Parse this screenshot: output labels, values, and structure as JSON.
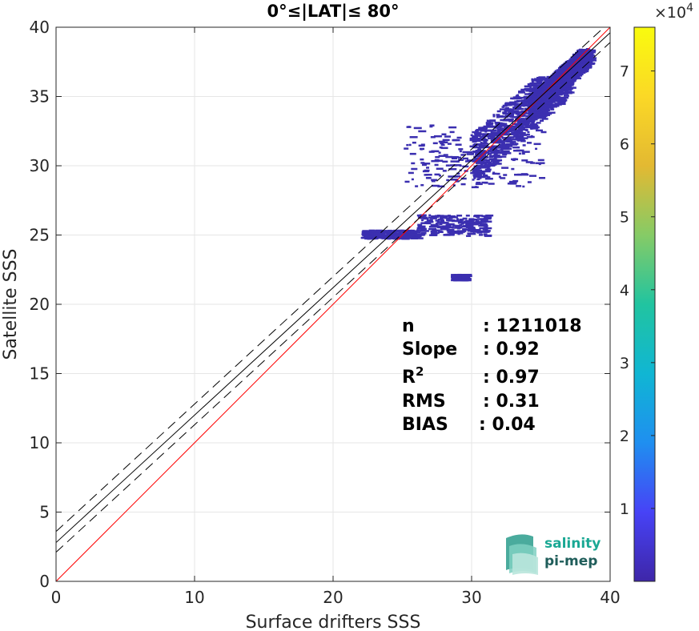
{
  "chart_data": {
    "type": "heatmap",
    "title": "0°≤|LAT|≤ 80°",
    "xlabel": "Surface drifters SSS",
    "ylabel": "Satellite SSS",
    "xlim": [
      0,
      40
    ],
    "ylim": [
      0,
      40
    ],
    "xticks": [
      "0",
      "10",
      "20",
      "30",
      "40"
    ],
    "yticks": [
      "0",
      "5",
      "10",
      "15",
      "20",
      "25",
      "30",
      "35",
      "40"
    ],
    "grid": true,
    "lines": [
      {
        "name": "1:1",
        "color": "#ff0000",
        "style": "solid",
        "slope": 1,
        "intercept": 0
      },
      {
        "name": "fit",
        "color": "#000000",
        "style": "solid",
        "slope": 0.92,
        "intercept": 2.8
      },
      {
        "name": "fit-upper",
        "color": "#000000",
        "style": "dashed",
        "slope": 0.92,
        "intercept": 3.6
      },
      {
        "name": "fit-lower",
        "color": "#000000",
        "style": "dashed",
        "slope": 0.92,
        "intercept": 2.1
      }
    ],
    "density_clusters": [
      {
        "x": [
          34,
          38.5
        ],
        "y": [
          33,
          38.5
        ],
        "level": "high"
      },
      {
        "x": [
          30,
          37
        ],
        "y": [
          29,
          36.5
        ],
        "level": "medium"
      },
      {
        "x": [
          25,
          35
        ],
        "y": [
          28.5,
          33
        ],
        "level": "low"
      },
      {
        "x": [
          26,
          31
        ],
        "y": [
          25,
          26.5
        ],
        "level": "low"
      },
      {
        "x": [
          22,
          26
        ],
        "y": [
          24.8,
          25.4
        ],
        "level": "low"
      },
      {
        "x": [
          28.5,
          29.5
        ],
        "y": [
          21.8,
          22.2
        ],
        "level": "low"
      }
    ],
    "colorbar": {
      "ticks": [
        "1",
        "2",
        "3",
        "4",
        "5",
        "6",
        "7"
      ],
      "range": [
        0,
        7.6
      ],
      "exponent_label": "×10",
      "exponent": "4",
      "colors": [
        "#3e26a8",
        "#4743f6",
        "#1f8ff0",
        "#10b6d3",
        "#21c4a0",
        "#86cb66",
        "#e3b932",
        "#fbd826",
        "#f9fb0e"
      ]
    },
    "stats": [
      {
        "label": "n",
        "value": ": 1211018"
      },
      {
        "label": "Slope",
        "value": ": 0.92"
      },
      {
        "label": "R",
        "sup": "2",
        "value": ": 0.97"
      },
      {
        "label": "RMS",
        "value": ": 0.31"
      },
      {
        "label": "BIAS",
        "value": ": 0.04"
      }
    ]
  },
  "logo": {
    "line1": "salinity",
    "line2": "pi-mep"
  },
  "colors": {
    "density": "#3b2fb0",
    "one_to_one": "#ff0000",
    "logo_teal": "#1aa894",
    "logo_dark": "#1f5d5a"
  }
}
